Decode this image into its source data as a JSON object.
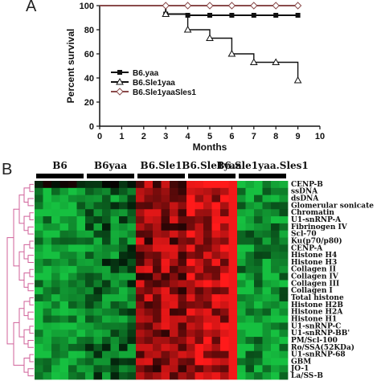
{
  "panels": {
    "a": "A",
    "b": "B"
  },
  "chart_data": [
    {
      "type": "line",
      "xlabel": "Months",
      "ylabel": "Percent survival",
      "xlim": [
        0,
        10
      ],
      "ylim": [
        0,
        100
      ],
      "xticks": [
        "0",
        "1",
        "2",
        "3",
        "4",
        "5",
        "6",
        "7",
        "8",
        "9",
        "10"
      ],
      "yticks": [
        "0",
        "20",
        "40",
        "60",
        "80",
        "100"
      ],
      "legend_position": "left-center",
      "series": [
        {
          "name": "B6.yaa",
          "marker": "square",
          "color": "#111111",
          "x": [
            0,
            3,
            3,
            4,
            4,
            9
          ],
          "y": [
            100,
            100,
            93,
            93,
            92,
            92
          ],
          "markers_x": [
            3,
            4,
            5,
            6,
            7,
            8,
            9
          ],
          "markers_y": [
            93,
            92,
            92,
            92,
            92,
            92,
            92
          ]
        },
        {
          "name": "B6.Sle1yaa",
          "marker": "triangle",
          "color": "#111111",
          "x": [
            0,
            3,
            3,
            4,
            4,
            5,
            5,
            6,
            6,
            7,
            7,
            8,
            8,
            9,
            9
          ],
          "y": [
            100,
            100,
            93,
            93,
            80,
            80,
            73,
            73,
            60,
            60,
            53,
            53,
            53,
            53,
            38
          ],
          "markers_x": [
            3,
            4,
            5,
            6,
            7,
            8,
            9
          ],
          "markers_y": [
            93,
            80,
            73,
            60,
            53,
            53,
            38
          ]
        },
        {
          "name": "B6.Sle1yaaSles1",
          "marker": "diamond",
          "color": "#8a4a4a",
          "x": [
            0,
            9
          ],
          "y": [
            100,
            100
          ],
          "markers_x": [
            3,
            4,
            5,
            6,
            7,
            8,
            9
          ],
          "markers_y": [
            100,
            100,
            100,
            100,
            100,
            100,
            100
          ]
        }
      ]
    },
    {
      "type": "heatmap",
      "groups": [
        "B6",
        "B6yaa",
        "B6.Sle1",
        "B6.Sle1yaa",
        "B6.Sle1yaa.Sles1"
      ],
      "rows": [
        "CENP-B",
        "ssDNA",
        "dsDNA",
        "Glomerular sonicate",
        "Chromatin",
        "U1-snRNP-A",
        "Fibrinogen IV",
        "Scl-70",
        "Ku(p70/p80)",
        "CENP-A",
        "Histone H4",
        "Histone H3",
        "Collagen II",
        "Collagen IV",
        "Collagen III",
        "Collagen I",
        "Total histone",
        "Histone H2B",
        "Histone H2A",
        "Histone H1",
        "U1-snRNP-C",
        "U1-snRNP-BB'",
        "PM/Scl-100",
        "Ro/SSA(52KDa)",
        "U1-snRNP-68",
        "GBM",
        "JO-1",
        "La/SS-B"
      ],
      "colors": {
        "low": "#16c040",
        "mid": "#000000",
        "high": "#ff1a1a"
      },
      "dendrogram_color": "#d0629a"
    }
  ]
}
